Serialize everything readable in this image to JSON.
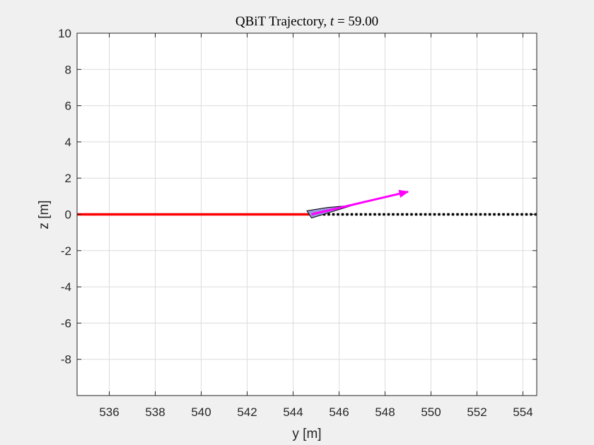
{
  "chart_data": {
    "type": "line",
    "title": {
      "prefix": "QBiT Trajectory, ",
      "variable": "t",
      "equals": " = ",
      "value": "59.00"
    },
    "xlabel": "y [m]",
    "ylabel": "z [m]",
    "xlim": [
      534.6,
      554.6
    ],
    "ylim": [
      -10,
      10
    ],
    "xticks": [
      536,
      538,
      540,
      542,
      544,
      546,
      548,
      550,
      552,
      554
    ],
    "xtick_labels": [
      "536",
      "538",
      "540",
      "542",
      "544",
      "546",
      "548",
      "550",
      "552",
      "554"
    ],
    "yticks": [
      -8,
      -6,
      -4,
      -2,
      0,
      2,
      4,
      6,
      8,
      10
    ],
    "ytick_labels": [
      "-8",
      "-6",
      "-4",
      "-2",
      "0",
      "2",
      "4",
      "6",
      "8",
      "10"
    ],
    "grid": true,
    "series": [
      {
        "style": "solid",
        "color": "#ff0000",
        "x": [
          534.6,
          544.7
        ],
        "y": [
          0,
          0
        ]
      },
      {
        "style": "dotted",
        "color": "#000000",
        "x": [
          544.7,
          554.6
        ],
        "y": [
          0,
          0
        ]
      }
    ],
    "glider": {
      "fill": "#9999dd",
      "stroke": "#000000",
      "polygon": [
        [
          544.6,
          0.2
        ],
        [
          545.5,
          0.38
        ],
        [
          546.6,
          0.5
        ],
        [
          544.8,
          -0.2
        ]
      ]
    },
    "velocity_arrow": {
      "color": "#ff00ff",
      "start": [
        544.8,
        0.0
      ],
      "end": [
        549.0,
        1.25
      ]
    },
    "colors": {
      "background": "#f0f0f0",
      "plot_area": "#ffffff",
      "grid": "#dcdcdc",
      "axes": "#262626"
    }
  }
}
